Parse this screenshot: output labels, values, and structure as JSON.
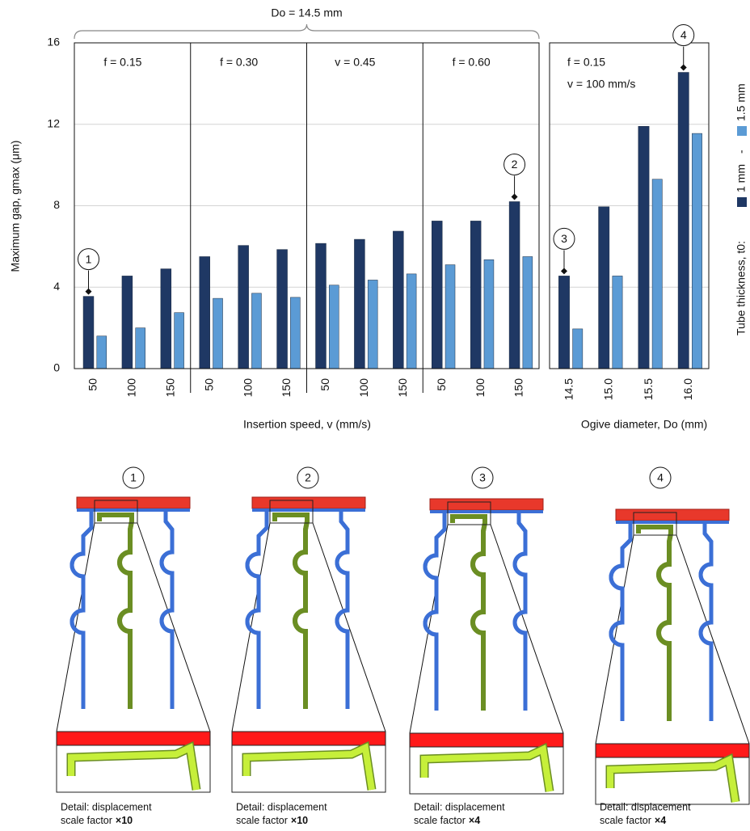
{
  "chart_data": [
    {
      "type": "bar",
      "brace_label": "Do = 14.5 mm",
      "ylabel": "Maximum gap, gmax (μm)",
      "xlabel": "Insertion speed, v (mm/s)",
      "groups": [
        "f = 0.15",
        "f = 0.30",
        "v = 0.45",
        "f = 0.60"
      ],
      "categories": [
        "50",
        "100",
        "150",
        "50",
        "100",
        "150",
        "50",
        "100",
        "150",
        "50",
        "100",
        "150"
      ],
      "series": [
        {
          "name": "1 mm",
          "color": "#1f3864",
          "values": [
            3.55,
            4.55,
            4.9,
            5.5,
            6.05,
            5.85,
            6.15,
            6.35,
            6.75,
            7.25,
            7.25,
            8.2
          ]
        },
        {
          "name": "1.5 mm",
          "color": "#5b9bd5",
          "values": [
            1.6,
            2.0,
            2.75,
            3.45,
            3.7,
            3.5,
            4.1,
            4.35,
            4.65,
            5.1,
            5.35,
            5.5
          ]
        }
      ],
      "callouts": [
        "1",
        null,
        null,
        null,
        null,
        null,
        null,
        null,
        null,
        null,
        null,
        "2"
      ],
      "ylim": [
        0,
        16
      ],
      "yticks": [
        0,
        4,
        8,
        12,
        16
      ],
      "ytick_labels": true,
      "grid": true,
      "legend_title": "Tube thickness, t0:",
      "legend_separator": "-"
    },
    {
      "type": "bar",
      "annotations": [
        "f = 0.15",
        "v = 100 mm/s"
      ],
      "xlabel": "Ogive diameter, Do (mm)",
      "categories": [
        "14.5",
        "15.0",
        "15.5",
        "16.0"
      ],
      "series": [
        {
          "color": "#1f3864",
          "values": [
            4.55,
            7.95,
            11.9,
            14.55
          ]
        },
        {
          "color": "#5b9bd5",
          "values": [
            1.95,
            4.55,
            9.3,
            11.55
          ]
        }
      ],
      "callouts": [
        "3",
        null,
        null,
        "4"
      ],
      "ylim": [
        0,
        16
      ],
      "yticks": [
        0,
        4,
        8,
        12,
        16
      ],
      "ytick_labels": false,
      "grid": true
    }
  ],
  "diagrams": [
    {
      "label": "1",
      "caption": "Detail: displacement",
      "scale": "scale factor",
      "factor": "×10"
    },
    {
      "label": "2",
      "caption": "Detail: displacement",
      "scale": "scale factor",
      "factor": "×10"
    },
    {
      "label": "3",
      "caption": "Detail: displacement",
      "scale": "scale factor",
      "factor": "×4"
    },
    {
      "label": "4",
      "caption": "Detail: displacement",
      "scale": "scale factor",
      "factor": "×4"
    }
  ]
}
